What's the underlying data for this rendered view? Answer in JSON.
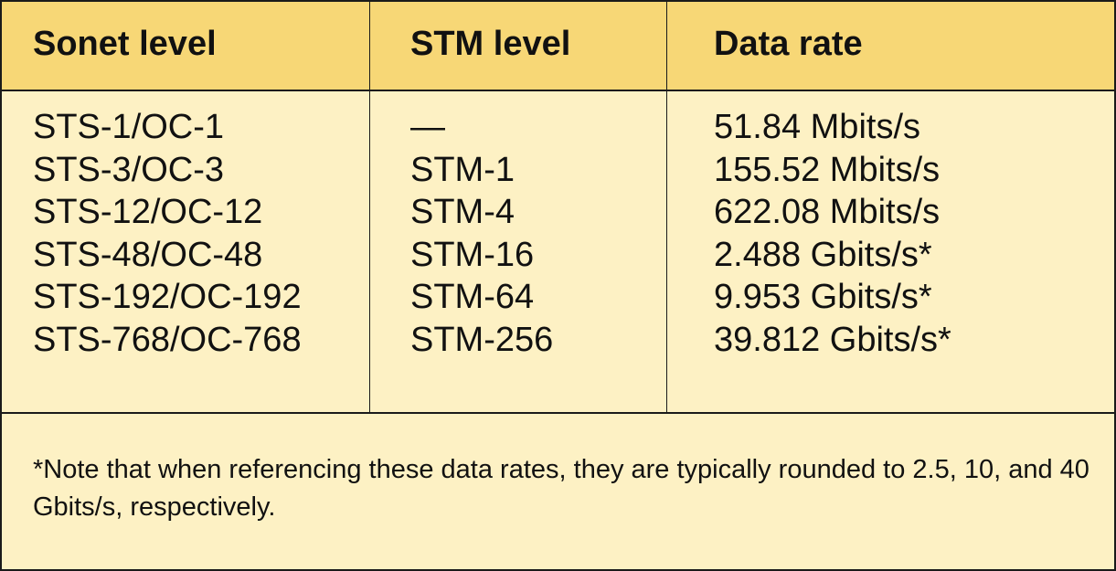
{
  "table": {
    "headers": [
      "Sonet level",
      "STM level",
      "Data rate"
    ],
    "rows": [
      {
        "sonet": "STS-1/OC-1",
        "stm": "—",
        "rate": "51.84 Mbits/s"
      },
      {
        "sonet": "STS-3/OC-3",
        "stm": "STM-1",
        "rate": "155.52 Mbits/s"
      },
      {
        "sonet": "STS-12/OC-12",
        "stm": "STM-4",
        "rate": "622.08 Mbits/s"
      },
      {
        "sonet": "STS-48/OC-48",
        "stm": "STM-16",
        "rate": "2.488 Gbits/s*"
      },
      {
        "sonet": "STS-192/OC-192",
        "stm": "STM-64",
        "rate": "9.953 Gbits/s*"
      },
      {
        "sonet": "STS-768/OC-768",
        "stm": "STM-256",
        "rate": "39.812 Gbits/s*"
      }
    ],
    "note": "*Note that when referencing these data rates, they are typically rounded to 2.5, 10, and 40 Gbits/s, respectively."
  },
  "colors": {
    "header_bg": "#f7d776",
    "body_bg": "#fdf1c4",
    "border": "#1a1a1a"
  }
}
